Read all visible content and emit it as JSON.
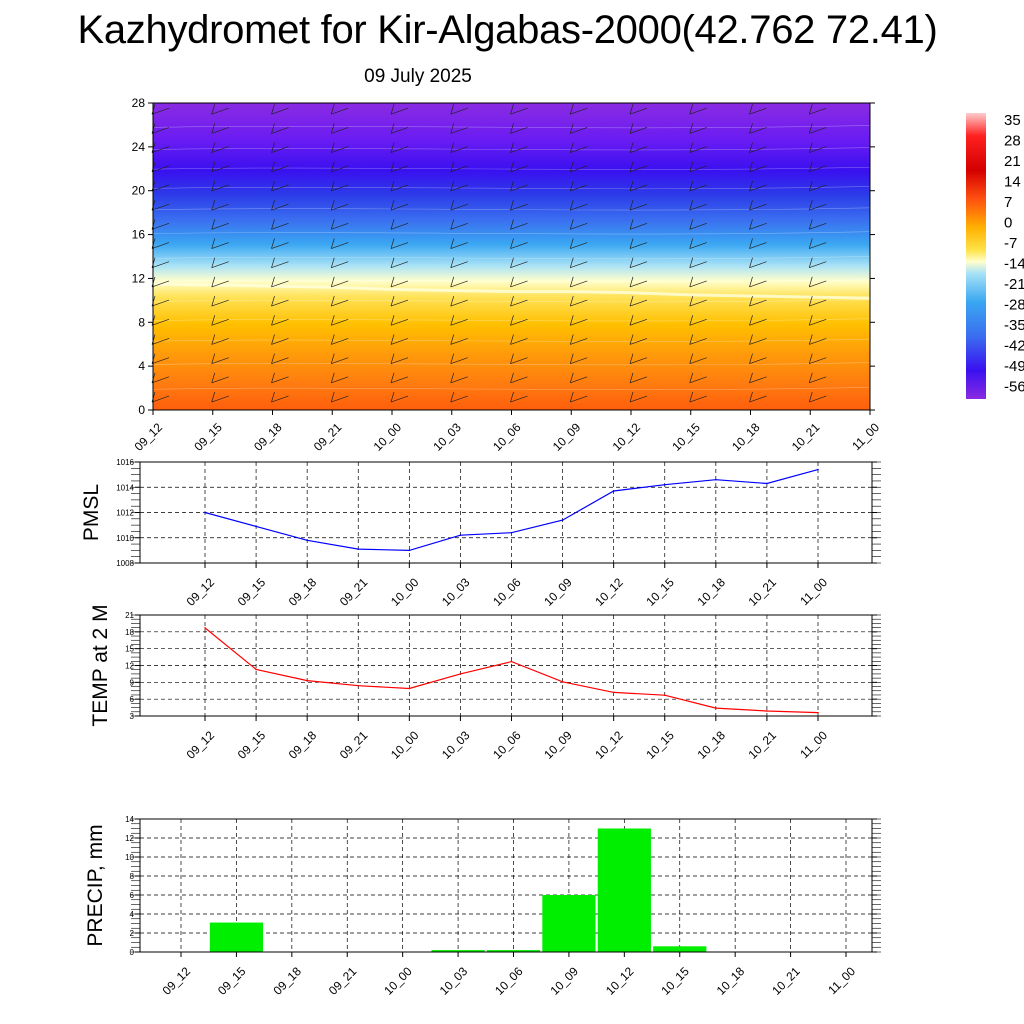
{
  "title": "Kazhydromet for Kir-Algabas-2000(42.762 72.41)",
  "subtitle": "09 July 2025",
  "colors": {
    "pmsl_line": "#0000ff",
    "temp_line": "#ff0000",
    "precip_bar": "#00ee00",
    "grid": "#000000"
  },
  "chart_data": [
    {
      "type": "heatmap",
      "name": "cross-section",
      "x_ticks": [
        "09_12",
        "09_15",
        "09_18",
        "09_21",
        "10_00",
        "10_03",
        "10_06",
        "10_09",
        "10_12",
        "10_15",
        "10_18",
        "10_21",
        "11_00"
      ],
      "y_ticks": [
        0,
        4,
        8,
        12,
        16,
        20,
        24,
        28
      ],
      "ylim": [
        0,
        28
      ],
      "freezing_level": [
        11.5,
        11.4,
        11.3,
        11.2,
        11.0,
        10.9,
        10.8,
        10.8,
        10.7,
        10.5,
        10.4,
        10.3,
        10.2
      ],
      "colorbar_labels": [
        "35",
        "28",
        "21",
        "14",
        "7",
        "0",
        "-7",
        "-14",
        "-21",
        "-28",
        "-35",
        "-42",
        "-49",
        "-56"
      ],
      "overlay": "wind barbs"
    },
    {
      "type": "line",
      "name": "pmsl",
      "ylabel": "PMSL",
      "categories": [
        "09_12",
        "09_15",
        "09_18",
        "09_21",
        "10_00",
        "10_03",
        "10_06",
        "10_09",
        "10_12",
        "10_15",
        "10_18",
        "10_21",
        "11_00"
      ],
      "values": [
        1012.0,
        1010.9,
        1009.8,
        1009.1,
        1009.0,
        1010.2,
        1010.4,
        1011.4,
        1013.7,
        1014.2,
        1014.6,
        1014.3,
        1015.4
      ],
      "ylim": [
        1008,
        1016
      ],
      "y_ticks": [
        1008,
        1010,
        1012,
        1014,
        1016
      ],
      "grid": true
    },
    {
      "type": "line",
      "name": "temp",
      "ylabel": "TEMP at 2 M",
      "categories": [
        "09_12",
        "09_15",
        "09_18",
        "09_21",
        "10_00",
        "10_03",
        "10_06",
        "10_09",
        "10_12",
        "10_15",
        "10_18",
        "10_21",
        "11_00"
      ],
      "values": [
        18.7,
        11.3,
        9.3,
        8.4,
        7.9,
        10.5,
        12.7,
        9.1,
        7.2,
        6.7,
        4.4,
        3.9,
        3.6
      ],
      "ylim": [
        3,
        21
      ],
      "y_ticks": [
        3,
        6,
        9,
        12,
        15,
        18,
        21
      ],
      "grid": true
    },
    {
      "type": "bar",
      "name": "precip",
      "ylabel": "PRECIP, mm",
      "categories": [
        "09_12",
        "09_15",
        "09_18",
        "09_21",
        "10_00",
        "10_03",
        "10_06",
        "10_09",
        "10_12",
        "10_15",
        "10_18",
        "10_21",
        "11_00"
      ],
      "values": [
        0,
        3.1,
        0.05,
        0,
        0,
        0.2,
        0.2,
        6.0,
        13.0,
        0.6,
        0,
        0,
        0
      ],
      "ylim": [
        0,
        14
      ],
      "y_ticks": [
        0,
        2,
        4,
        6,
        8,
        10,
        12,
        14
      ],
      "grid": true
    }
  ]
}
